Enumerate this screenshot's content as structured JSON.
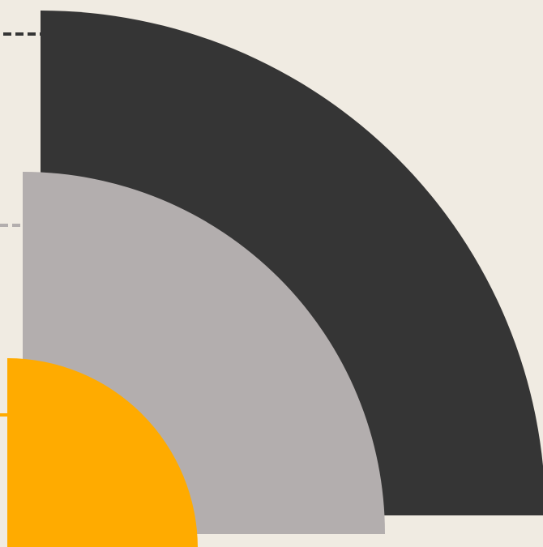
{
  "colors": {
    "background": "#f0ebe2",
    "large_arc": "#353535",
    "medium_arc": "#b3aeae",
    "small_arc": "#ffab00"
  },
  "shapes": [
    {
      "name": "large-quarter-circle",
      "color_key": "large_arc",
      "leader_line": "dashed"
    },
    {
      "name": "medium-quarter-circle",
      "color_key": "medium_arc",
      "leader_line": "dashed"
    },
    {
      "name": "small-quarter-circle",
      "color_key": "small_arc",
      "leader_line": "dashed"
    }
  ]
}
